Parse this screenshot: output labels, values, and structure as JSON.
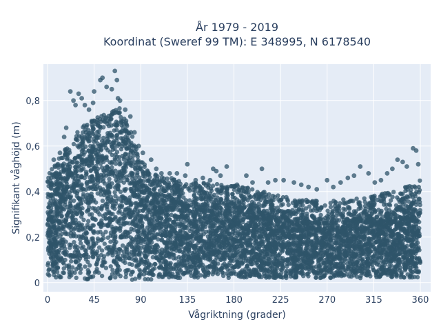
{
  "chart_data": {
    "type": "scatter",
    "title": "År 1979 - 2019",
    "subtitle": "Koordinat (Sweref 99 TM): E 348995, N 6178540",
    "xlabel": "Vågriktning (grader)",
    "ylabel": "Signifikant våghöjd (m)",
    "xlim": [
      -4,
      370
    ],
    "ylim": [
      -0.04,
      0.96
    ],
    "xticks": [
      0,
      45,
      90,
      135,
      180,
      225,
      270,
      315,
      360
    ],
    "xtick_labels": [
      "0",
      "45",
      "90",
      "135",
      "180",
      "225",
      "270",
      "315",
      "360"
    ],
    "yticks": [
      0,
      0.2,
      0.4,
      0.6,
      0.8
    ],
    "ytick_labels": [
      "0",
      "0,2",
      "0,4",
      "0,6",
      "0,8"
    ],
    "grid": true,
    "legend": "none",
    "marker_color": "#2f5469",
    "marker_opacity": 0.75,
    "background_color": "#e5ecf6",
    "series": [
      {
        "x": [
          0,
          10,
          20,
          30,
          40,
          50,
          60,
          70,
          80,
          90,
          100,
          110,
          120,
          130,
          140,
          150,
          160,
          170,
          180,
          190,
          200,
          210,
          220,
          230,
          240,
          250,
          260,
          270,
          280,
          290,
          300,
          310,
          320,
          330,
          340,
          350,
          360
        ],
        "y_min": [
          0.02,
          0.02,
          0.02,
          0.02,
          0.01,
          0.01,
          0.01,
          0.01,
          0.01,
          0.01,
          0.01,
          0.02,
          0.02,
          0.02,
          0.02,
          0.02,
          0.02,
          0.02,
          0.02,
          0.02,
          0.02,
          0.02,
          0.02,
          0.02,
          0.02,
          0.02,
          0.02,
          0.02,
          0.02,
          0.02,
          0.02,
          0.02,
          0.02,
          0.02,
          0.02,
          0.02,
          0.02
        ],
        "y_max_dense": [
          0.38,
          0.45,
          0.52,
          0.58,
          0.62,
          0.64,
          0.66,
          0.68,
          0.58,
          0.45,
          0.4,
          0.38,
          0.37,
          0.36,
          0.35,
          0.35,
          0.35,
          0.34,
          0.34,
          0.33,
          0.32,
          0.31,
          0.3,
          0.29,
          0.28,
          0.28,
          0.27,
          0.27,
          0.27,
          0.28,
          0.28,
          0.29,
          0.3,
          0.31,
          0.32,
          0.34,
          0.36
        ]
      }
    ],
    "outliers": [
      {
        "x": 6,
        "y": 0.54
      },
      {
        "x": 7,
        "y": 0.47
      },
      {
        "x": 10,
        "y": 0.52
      },
      {
        "x": 12,
        "y": 0.57
      },
      {
        "x": 16,
        "y": 0.64
      },
      {
        "x": 18,
        "y": 0.68
      },
      {
        "x": 22,
        "y": 0.84
      },
      {
        "x": 25,
        "y": 0.8
      },
      {
        "x": 27,
        "y": 0.78
      },
      {
        "x": 30,
        "y": 0.83
      },
      {
        "x": 33,
        "y": 0.81
      },
      {
        "x": 36,
        "y": 0.78
      },
      {
        "x": 40,
        "y": 0.76
      },
      {
        "x": 44,
        "y": 0.79
      },
      {
        "x": 45,
        "y": 0.84
      },
      {
        "x": 51,
        "y": 0.89
      },
      {
        "x": 53,
        "y": 0.9
      },
      {
        "x": 57,
        "y": 0.86
      },
      {
        "x": 62,
        "y": 0.85
      },
      {
        "x": 65,
        "y": 0.93
      },
      {
        "x": 67,
        "y": 0.89
      },
      {
        "x": 68,
        "y": 0.81
      },
      {
        "x": 70,
        "y": 0.8
      },
      {
        "x": 75,
        "y": 0.76
      },
      {
        "x": 80,
        "y": 0.73
      },
      {
        "x": 84,
        "y": 0.66
      },
      {
        "x": 88,
        "y": 0.6
      },
      {
        "x": 92,
        "y": 0.57
      },
      {
        "x": 100,
        "y": 0.54
      },
      {
        "x": 105,
        "y": 0.5
      },
      {
        "x": 110,
        "y": 0.48
      },
      {
        "x": 118,
        "y": 0.48
      },
      {
        "x": 125,
        "y": 0.48
      },
      {
        "x": 133,
        "y": 0.47
      },
      {
        "x": 135,
        "y": 0.52
      },
      {
        "x": 143,
        "y": 0.45
      },
      {
        "x": 150,
        "y": 0.46
      },
      {
        "x": 157,
        "y": 0.45
      },
      {
        "x": 160,
        "y": 0.5
      },
      {
        "x": 163,
        "y": 0.49
      },
      {
        "x": 167,
        "y": 0.47
      },
      {
        "x": 173,
        "y": 0.51
      },
      {
        "x": 183,
        "y": 0.43
      },
      {
        "x": 192,
        "y": 0.47
      },
      {
        "x": 198,
        "y": 0.44
      },
      {
        "x": 207,
        "y": 0.5
      },
      {
        "x": 213,
        "y": 0.44
      },
      {
        "x": 220,
        "y": 0.45
      },
      {
        "x": 228,
        "y": 0.45
      },
      {
        "x": 238,
        "y": 0.44
      },
      {
        "x": 245,
        "y": 0.43
      },
      {
        "x": 252,
        "y": 0.42
      },
      {
        "x": 260,
        "y": 0.41
      },
      {
        "x": 270,
        "y": 0.45
      },
      {
        "x": 276,
        "y": 0.42
      },
      {
        "x": 283,
        "y": 0.44
      },
      {
        "x": 290,
        "y": 0.46
      },
      {
        "x": 296,
        "y": 0.47
      },
      {
        "x": 302,
        "y": 0.51
      },
      {
        "x": 310,
        "y": 0.48
      },
      {
        "x": 316,
        "y": 0.44
      },
      {
        "x": 322,
        "y": 0.45
      },
      {
        "x": 328,
        "y": 0.48
      },
      {
        "x": 333,
        "y": 0.5
      },
      {
        "x": 338,
        "y": 0.54
      },
      {
        "x": 343,
        "y": 0.53
      },
      {
        "x": 347,
        "y": 0.51
      },
      {
        "x": 353,
        "y": 0.59
      },
      {
        "x": 356,
        "y": 0.58
      },
      {
        "x": 358,
        "y": 0.52
      },
      {
        "x": 3,
        "y": 0.43
      },
      {
        "x": 1,
        "y": 0.46
      }
    ]
  }
}
